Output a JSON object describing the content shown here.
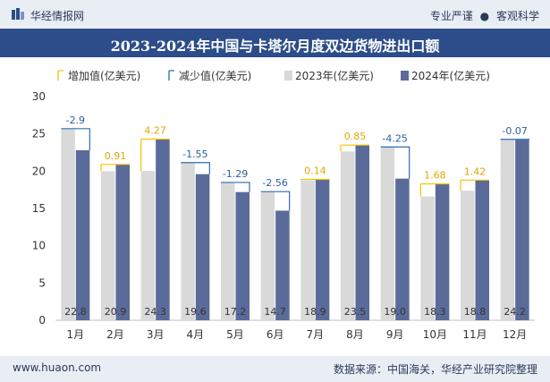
{
  "header": {
    "brand": "华经情报网",
    "slogan_left": "专业严谨",
    "slogan_sep": "●",
    "slogan_right": "客观科学"
  },
  "footer": {
    "site": "www.huaon.com",
    "source": "数据来源：中国海关，华经产业研究院整理"
  },
  "colors": {
    "bar2023": "#d9d9d9",
    "bar2024": "#5b6b99",
    "increase": "#f5c200",
    "decrease": "#2a6db5",
    "title_bg": "#2d4d8a"
  },
  "chart_data": {
    "type": "bar",
    "title": "2023-2024年中国与卡塔尔月度双边货物进出口额",
    "categories": [
      "1月",
      "2月",
      "3月",
      "4月",
      "5月",
      "6月",
      "7月",
      "8月",
      "9月",
      "10月",
      "11月",
      "12月"
    ],
    "series": [
      {
        "name": "2023年(亿美元)",
        "values": [
          25.7,
          19.99,
          20.03,
          21.15,
          18.49,
          17.26,
          18.76,
          22.65,
          23.25,
          16.62,
          17.38,
          24.27
        ]
      },
      {
        "name": "2024年(亿美元)",
        "values": [
          22.8,
          20.9,
          24.3,
          19.6,
          17.2,
          14.7,
          18.9,
          23.5,
          19.0,
          18.3,
          18.8,
          24.2
        ]
      }
    ],
    "changes": [
      -2.9,
      0.91,
      4.27,
      -1.55,
      -1.29,
      -2.56,
      0.14,
      0.85,
      -4.25,
      1.68,
      1.42,
      -0.07
    ],
    "change_labels": [
      "-2.9",
      "0.91",
      "4.27",
      "-1.55",
      "-1.29",
      "-2.56",
      "0.14",
      "0.85",
      "-4.25",
      "1.68",
      "1.42",
      "-0.07"
    ],
    "value_labels_2024": [
      "22.8",
      "20.9",
      "24.3",
      "19.6",
      "17.2",
      "14.7",
      "18.9",
      "23.5",
      "19.0",
      "18.3",
      "18.8",
      "24.2"
    ],
    "legend": {
      "increase": "增加值(亿美元)",
      "decrease": "减少值(亿美元)",
      "s2023": "2023年(亿美元)",
      "s2024": "2024年(亿美元)"
    },
    "legend_position": "top",
    "ylim": [
      0,
      30
    ],
    "yticks": [
      0,
      5,
      10,
      15,
      20,
      25,
      30
    ],
    "grid": false
  }
}
